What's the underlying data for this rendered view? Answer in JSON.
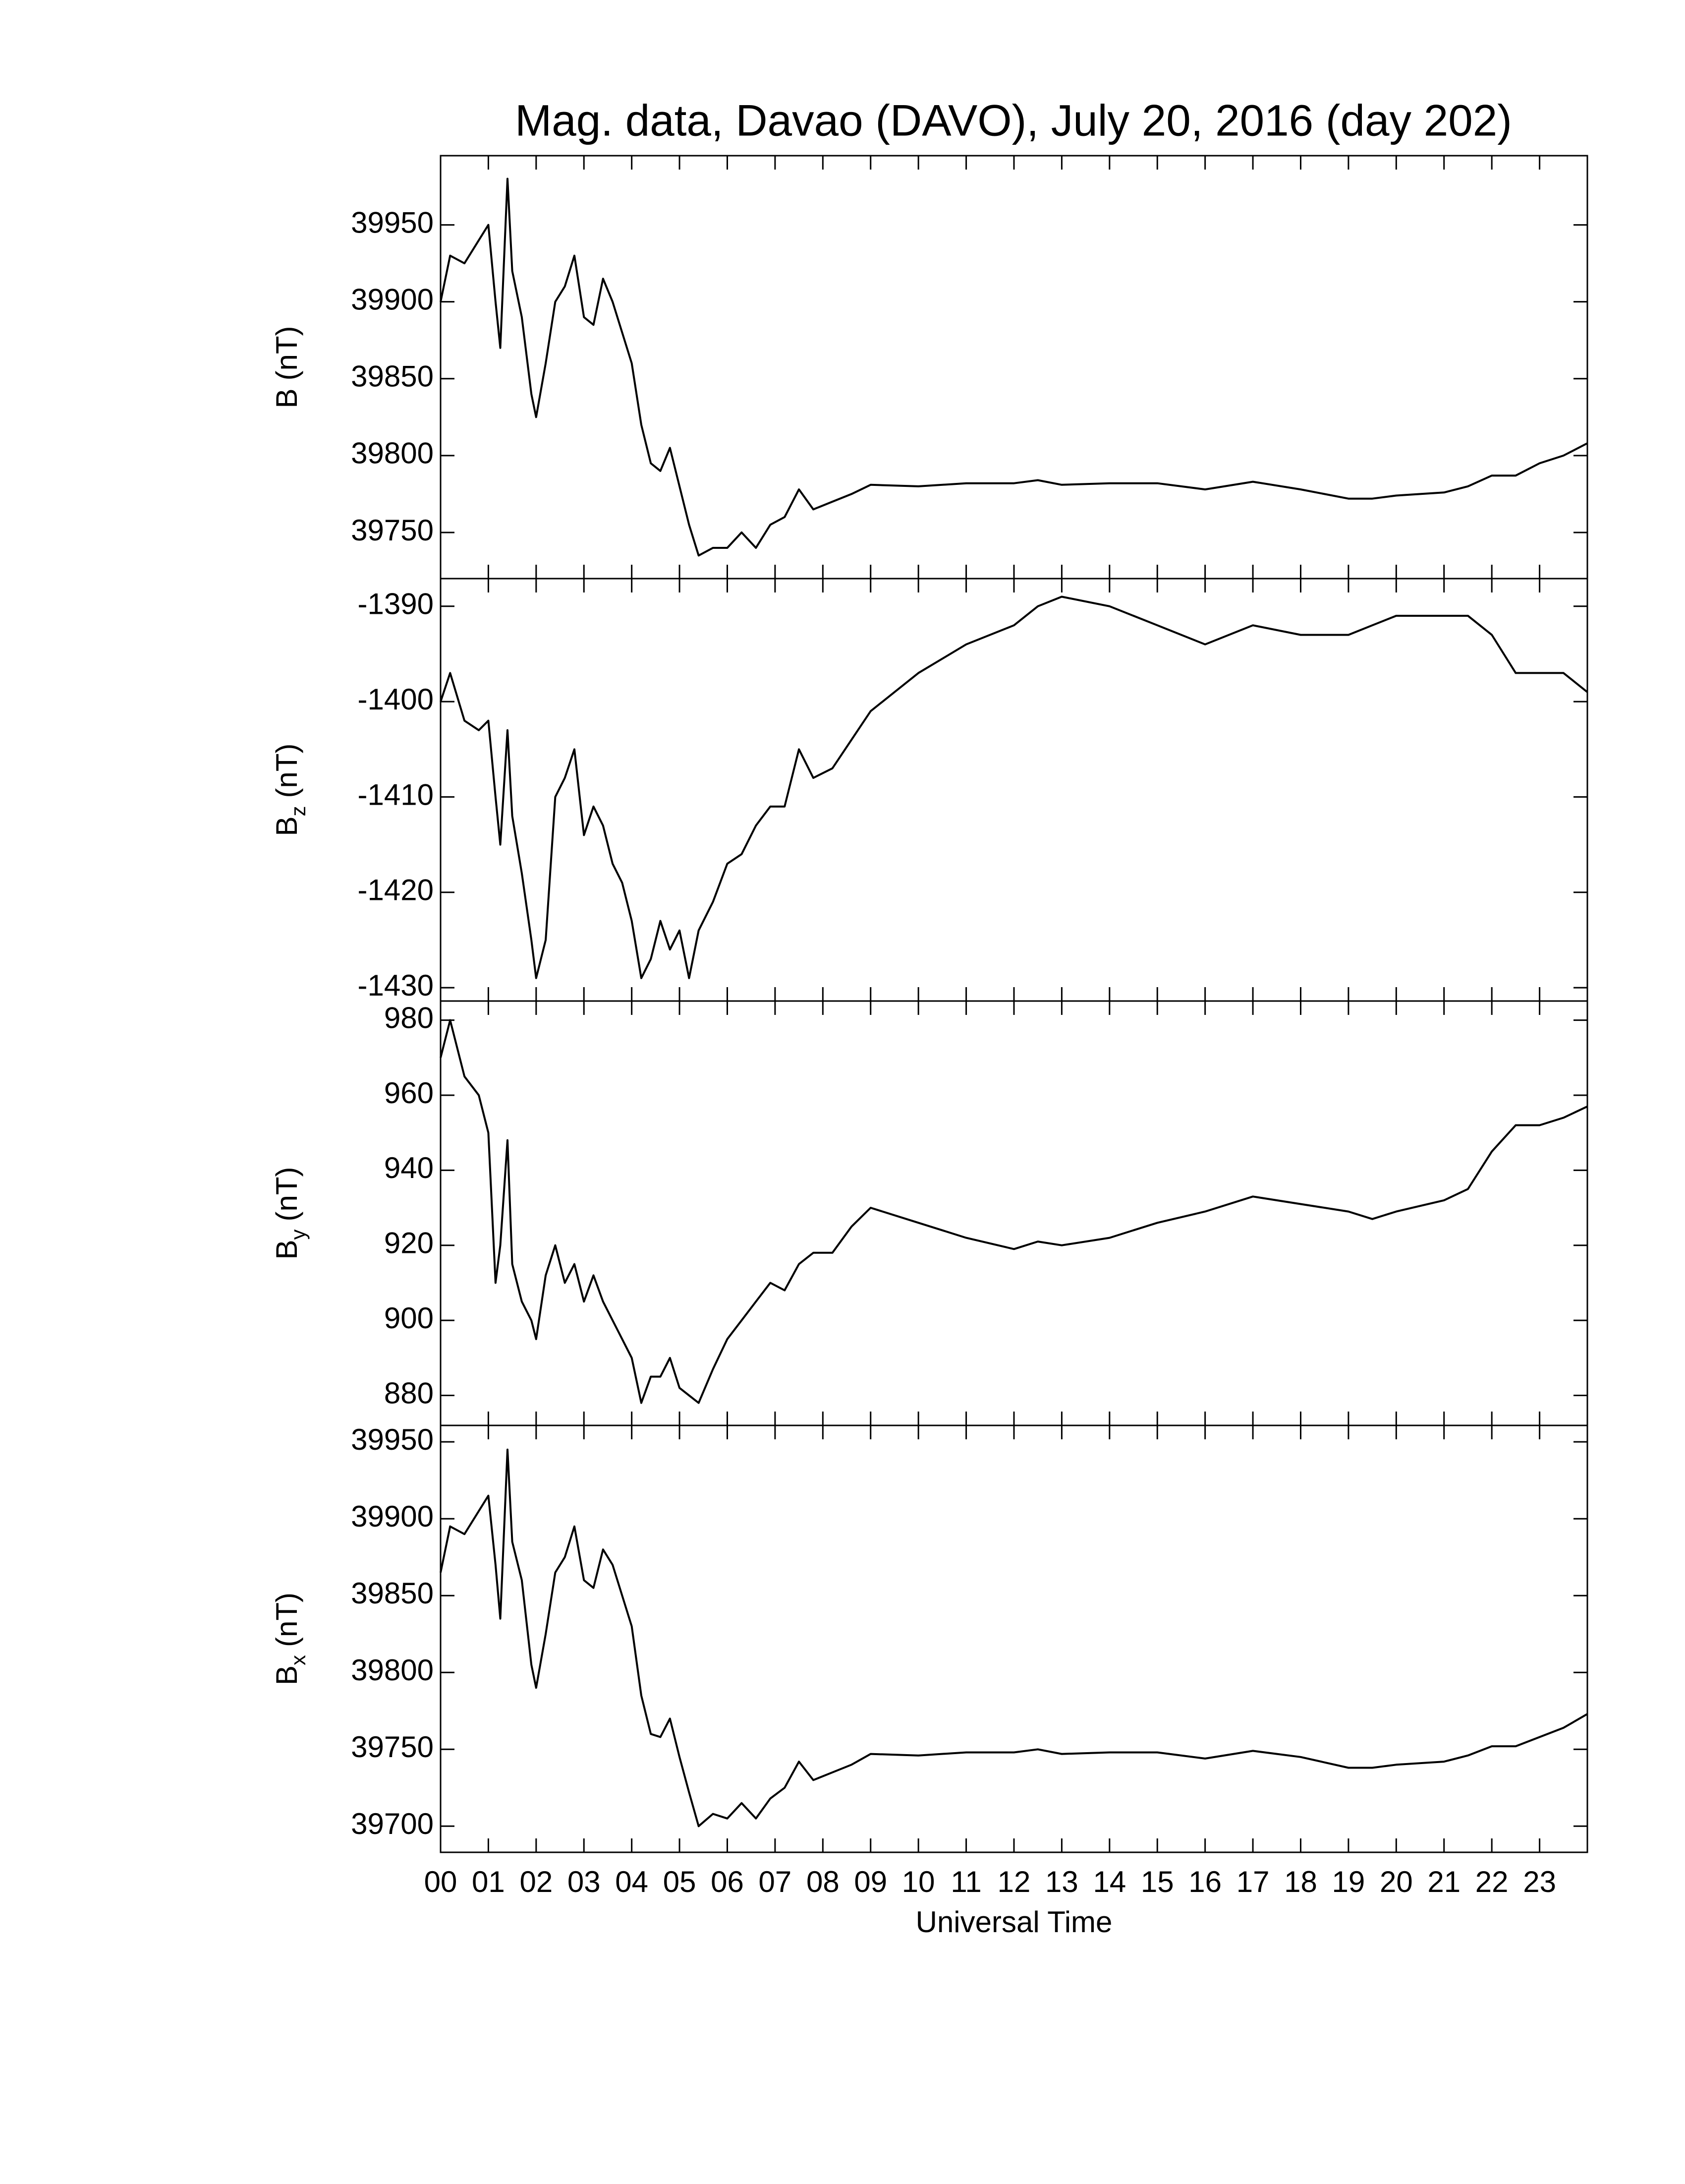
{
  "chart_data": [
    {
      "type": "line",
      "title": "Mag. data, Davao (DAVO), July 20, 2016 (day 202)",
      "ylabel": "B",
      "ylabel_unit": "(nT)",
      "color": "#000000",
      "xlim": [
        0,
        24
      ],
      "ylim": [
        39720,
        39995
      ],
      "yticks": [
        39750,
        39800,
        39850,
        39900,
        39950
      ],
      "x": [
        0,
        0.2,
        0.5,
        0.8,
        1.0,
        1.15,
        1.25,
        1.4,
        1.5,
        1.7,
        1.9,
        2.0,
        2.2,
        2.4,
        2.6,
        2.8,
        3.0,
        3.2,
        3.4,
        3.6,
        3.8,
        4.0,
        4.2,
        4.4,
        4.6,
        4.8,
        5.0,
        5.2,
        5.4,
        5.7,
        6.0,
        6.3,
        6.6,
        6.9,
        7.2,
        7.5,
        7.8,
        8.2,
        8.6,
        9,
        10,
        11,
        12,
        12.5,
        13,
        14,
        15,
        16,
        17,
        18,
        19,
        19.5,
        20,
        21,
        21.5,
        22,
        22.5,
        23,
        23.5,
        24
      ],
      "values": [
        39900,
        39930,
        39925,
        39940,
        39950,
        39900,
        39870,
        39980,
        39920,
        39890,
        39840,
        39825,
        39860,
        39900,
        39910,
        39930,
        39890,
        39885,
        39915,
        39900,
        39880,
        39860,
        39820,
        39795,
        39790,
        39805,
        39780,
        39755,
        39735,
        39740,
        39740,
        39750,
        39740,
        39755,
        39760,
        39778,
        39765,
        39770,
        39775,
        39781,
        39780,
        39782,
        39782,
        39784,
        39781,
        39782,
        39782,
        39778,
        39783,
        39778,
        39772,
        39772,
        39774,
        39776,
        39780,
        39787,
        39787,
        39795,
        39800,
        39808
      ]
    },
    {
      "type": "line",
      "ylabel": "B",
      "ylabel_sub": "z",
      "ylabel_unit": "(nT)",
      "color": "#000000",
      "xlim": [
        0,
        24
      ],
      "ylim": [
        -1431.4,
        -1387.1
      ],
      "yticks": [
        -1430,
        -1420,
        -1410,
        -1400,
        -1390
      ],
      "x": [
        0,
        0.2,
        0.5,
        0.8,
        1.0,
        1.15,
        1.25,
        1.4,
        1.5,
        1.7,
        1.9,
        2.0,
        2.2,
        2.4,
        2.6,
        2.8,
        3.0,
        3.2,
        3.4,
        3.6,
        3.8,
        4.0,
        4.2,
        4.4,
        4.6,
        4.8,
        5.0,
        5.2,
        5.4,
        5.7,
        6.0,
        6.3,
        6.6,
        6.9,
        7.2,
        7.5,
        7.8,
        8.2,
        8.6,
        9,
        10,
        11,
        12,
        12.5,
        13,
        14,
        15,
        16,
        17,
        18,
        19,
        19.5,
        20,
        21,
        21.5,
        22,
        22.5,
        23,
        23.5,
        24
      ],
      "values": [
        -1400,
        -1397,
        -1402,
        -1403,
        -1402,
        -1410,
        -1415,
        -1403,
        -1412,
        -1418,
        -1425,
        -1429,
        -1425,
        -1410,
        -1408,
        -1405,
        -1414,
        -1411,
        -1413,
        -1417,
        -1419,
        -1423,
        -1429,
        -1427,
        -1423,
        -1426,
        -1424,
        -1429,
        -1424,
        -1421,
        -1417,
        -1416,
        -1413,
        -1411,
        -1411,
        -1405,
        -1408,
        -1407,
        -1404,
        -1401,
        -1397,
        -1394,
        -1392,
        -1390,
        -1389,
        -1390,
        -1392,
        -1394,
        -1392,
        -1393,
        -1393,
        -1392,
        -1391,
        -1391,
        -1391,
        -1393,
        -1397,
        -1397,
        -1397,
        -1399
      ]
    },
    {
      "type": "line",
      "ylabel": "B",
      "ylabel_sub": "y",
      "ylabel_unit": "(nT)",
      "color": "#000000",
      "xlim": [
        0,
        24
      ],
      "ylim": [
        872,
        985.1
      ],
      "yticks": [
        880,
        900,
        920,
        940,
        960,
        980
      ],
      "x": [
        0,
        0.2,
        0.5,
        0.8,
        1.0,
        1.15,
        1.25,
        1.4,
        1.5,
        1.7,
        1.9,
        2.0,
        2.2,
        2.4,
        2.6,
        2.8,
        3.0,
        3.2,
        3.4,
        3.6,
        3.8,
        4.0,
        4.2,
        4.4,
        4.6,
        4.8,
        5.0,
        5.2,
        5.4,
        5.7,
        6.0,
        6.3,
        6.6,
        6.9,
        7.2,
        7.5,
        7.8,
        8.2,
        8.6,
        9,
        10,
        11,
        12,
        12.5,
        13,
        14,
        15,
        16,
        17,
        18,
        19,
        19.5,
        20,
        21,
        21.5,
        22,
        22.5,
        23,
        23.5,
        24
      ],
      "values": [
        970,
        980,
        965,
        960,
        950,
        910,
        920,
        948,
        915,
        905,
        900,
        895,
        912,
        920,
        910,
        915,
        905,
        912,
        905,
        900,
        895,
        890,
        878,
        885,
        885,
        890,
        882,
        880,
        878,
        887,
        895,
        900,
        905,
        910,
        908,
        915,
        918,
        918,
        925,
        930,
        926,
        922,
        919,
        921,
        920,
        922,
        926,
        929,
        933,
        931,
        929,
        927,
        929,
        932,
        935,
        945,
        952,
        952,
        954,
        957
      ]
    },
    {
      "type": "line",
      "ylabel": "B",
      "ylabel_sub": "x",
      "ylabel_unit": "(nT)",
      "color": "#000000",
      "xlabel": "Universal Time",
      "xlim": [
        0,
        24
      ],
      "ylim": [
        39683,
        39960.7
      ],
      "yticks": [
        39700,
        39750,
        39800,
        39850,
        39900,
        39950
      ],
      "xticks": [
        {
          "value": 0,
          "label": "00"
        },
        {
          "value": 1,
          "label": "01"
        },
        {
          "value": 2,
          "label": "02"
        },
        {
          "value": 3,
          "label": "03"
        },
        {
          "value": 4,
          "label": "04"
        },
        {
          "value": 5,
          "label": "05"
        },
        {
          "value": 6,
          "label": "06"
        },
        {
          "value": 7,
          "label": "07"
        },
        {
          "value": 8,
          "label": "08"
        },
        {
          "value": 9,
          "label": "09"
        },
        10,
        11,
        12,
        13,
        14,
        15,
        16,
        17,
        18,
        19,
        20,
        21,
        22,
        23
      ],
      "x": [
        0,
        0.2,
        0.5,
        0.8,
        1.0,
        1.15,
        1.25,
        1.4,
        1.5,
        1.7,
        1.9,
        2.0,
        2.2,
        2.4,
        2.6,
        2.8,
        3.0,
        3.2,
        3.4,
        3.6,
        3.8,
        4.0,
        4.2,
        4.4,
        4.6,
        4.8,
        5.0,
        5.2,
        5.4,
        5.7,
        6.0,
        6.3,
        6.6,
        6.9,
        7.2,
        7.5,
        7.8,
        8.2,
        8.6,
        9,
        10,
        11,
        12,
        12.5,
        13,
        14,
        15,
        16,
        17,
        18,
        19,
        19.5,
        20,
        21,
        21.5,
        22,
        22.5,
        23,
        23.5,
        24
      ],
      "values": [
        39865,
        39895,
        39890,
        39905,
        39915,
        39870,
        39835,
        39945,
        39885,
        39860,
        39805,
        39790,
        39825,
        39865,
        39875,
        39895,
        39860,
        39855,
        39880,
        39870,
        39850,
        39830,
        39785,
        39760,
        39758,
        39770,
        39745,
        39722,
        39700,
        39708,
        39705,
        39715,
        39705,
        39718,
        39725,
        39742,
        39730,
        39735,
        39740,
        39747,
        39746,
        39748,
        39748,
        39750,
        39747,
        39748,
        39748,
        39744,
        39749,
        39745,
        39738,
        39738,
        39740,
        39742,
        39746,
        39752,
        39752,
        39758,
        39764,
        39773
      ]
    }
  ]
}
